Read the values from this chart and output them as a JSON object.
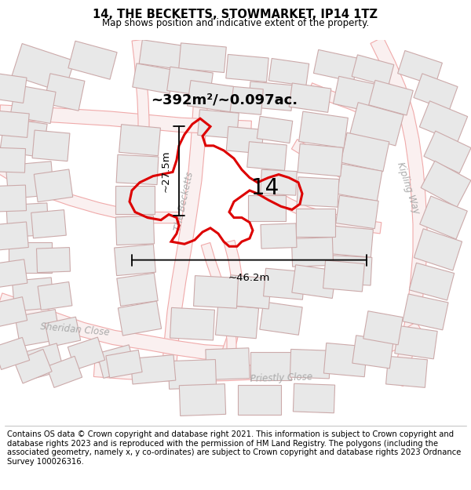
{
  "title": "14, THE BECKETTS, STOWMARKET, IP14 1TZ",
  "subtitle": "Map shows position and indicative extent of the property.",
  "footer": "Contains OS data © Crown copyright and database right 2021. This information is subject to Crown copyright and database rights 2023 and is reproduced with the permission of HM Land Registry. The polygons (including the associated geometry, namely x, y co-ordinates) are subject to Crown copyright and database rights 2023 Ordnance Survey 100026316.",
  "area_label": "~392m²/~0.097ac.",
  "width_label": "~46.2m",
  "height_label": "~27.5m",
  "property_number": "14",
  "map_bg": "#f8f5f5",
  "property_fill": "none",
  "property_edge": "#dd0000",
  "road_outline_color": "#f0aaaa",
  "road_fill_color": "#faf0f0",
  "building_fill": "#e8e8e8",
  "building_edge": "#ccaaaa",
  "dim_line_color": "#000000",
  "text_color": "#000000",
  "title_fontsize": 10.5,
  "subtitle_fontsize": 8.5,
  "footer_fontsize": 7.2,
  "label_fontsize": 13,
  "number_fontsize": 20,
  "annotation_fontsize": 9.5,
  "road_label_color": "#aaaaaa",
  "road_label_fontsize": 8.5
}
